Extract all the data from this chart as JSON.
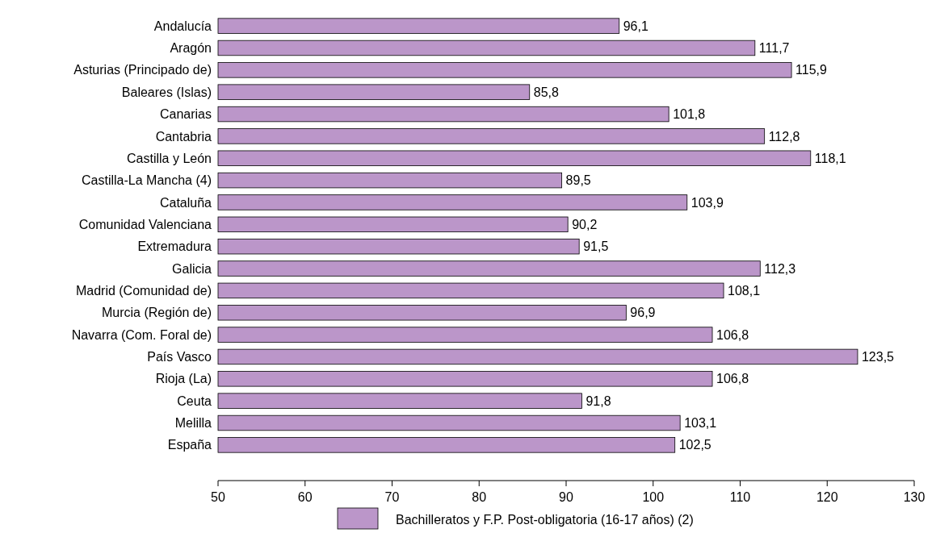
{
  "chart_data": {
    "type": "bar",
    "orientation": "horizontal",
    "categories": [
      "Andalucía",
      "Aragón",
      "Asturias (Principado de)",
      "Baleares (Islas)",
      "Canarias",
      "Cantabria",
      "Castilla y León",
      "Castilla-La Mancha (4)",
      "Cataluña",
      "Comunidad Valenciana",
      "Extremadura",
      "Galicia",
      "Madrid (Comunidad de)",
      "Murcia (Región de)",
      "Navarra (Com. Foral de)",
      "País Vasco",
      "Rioja (La)",
      "Ceuta",
      "Melilla",
      "España"
    ],
    "series": [
      {
        "name": "Bachilleratos y F.P. Post-obligatoria (16-17 años) (2)",
        "color": "#bb96c9",
        "values": [
          96.1,
          111.7,
          115.9,
          85.8,
          101.8,
          112.8,
          118.1,
          89.5,
          103.9,
          90.2,
          91.5,
          112.3,
          108.1,
          96.9,
          106.8,
          123.5,
          106.8,
          91.8,
          103.1,
          102.5
        ],
        "value_labels": [
          "96,1",
          "111,7",
          "115,9",
          "85,8",
          "101,8",
          "112,8",
          "118,1",
          "89,5",
          "103,9",
          "90,2",
          "91,5",
          "112,3",
          "108,1",
          "96,9",
          "106,8",
          "123,5",
          "106,8",
          "91,8",
          "103,1",
          "102,5"
        ]
      }
    ],
    "xlim": [
      50,
      130
    ],
    "xticks": [
      50,
      60,
      70,
      80,
      90,
      100,
      110,
      120,
      130
    ],
    "legend": "bottom",
    "grid": false
  }
}
